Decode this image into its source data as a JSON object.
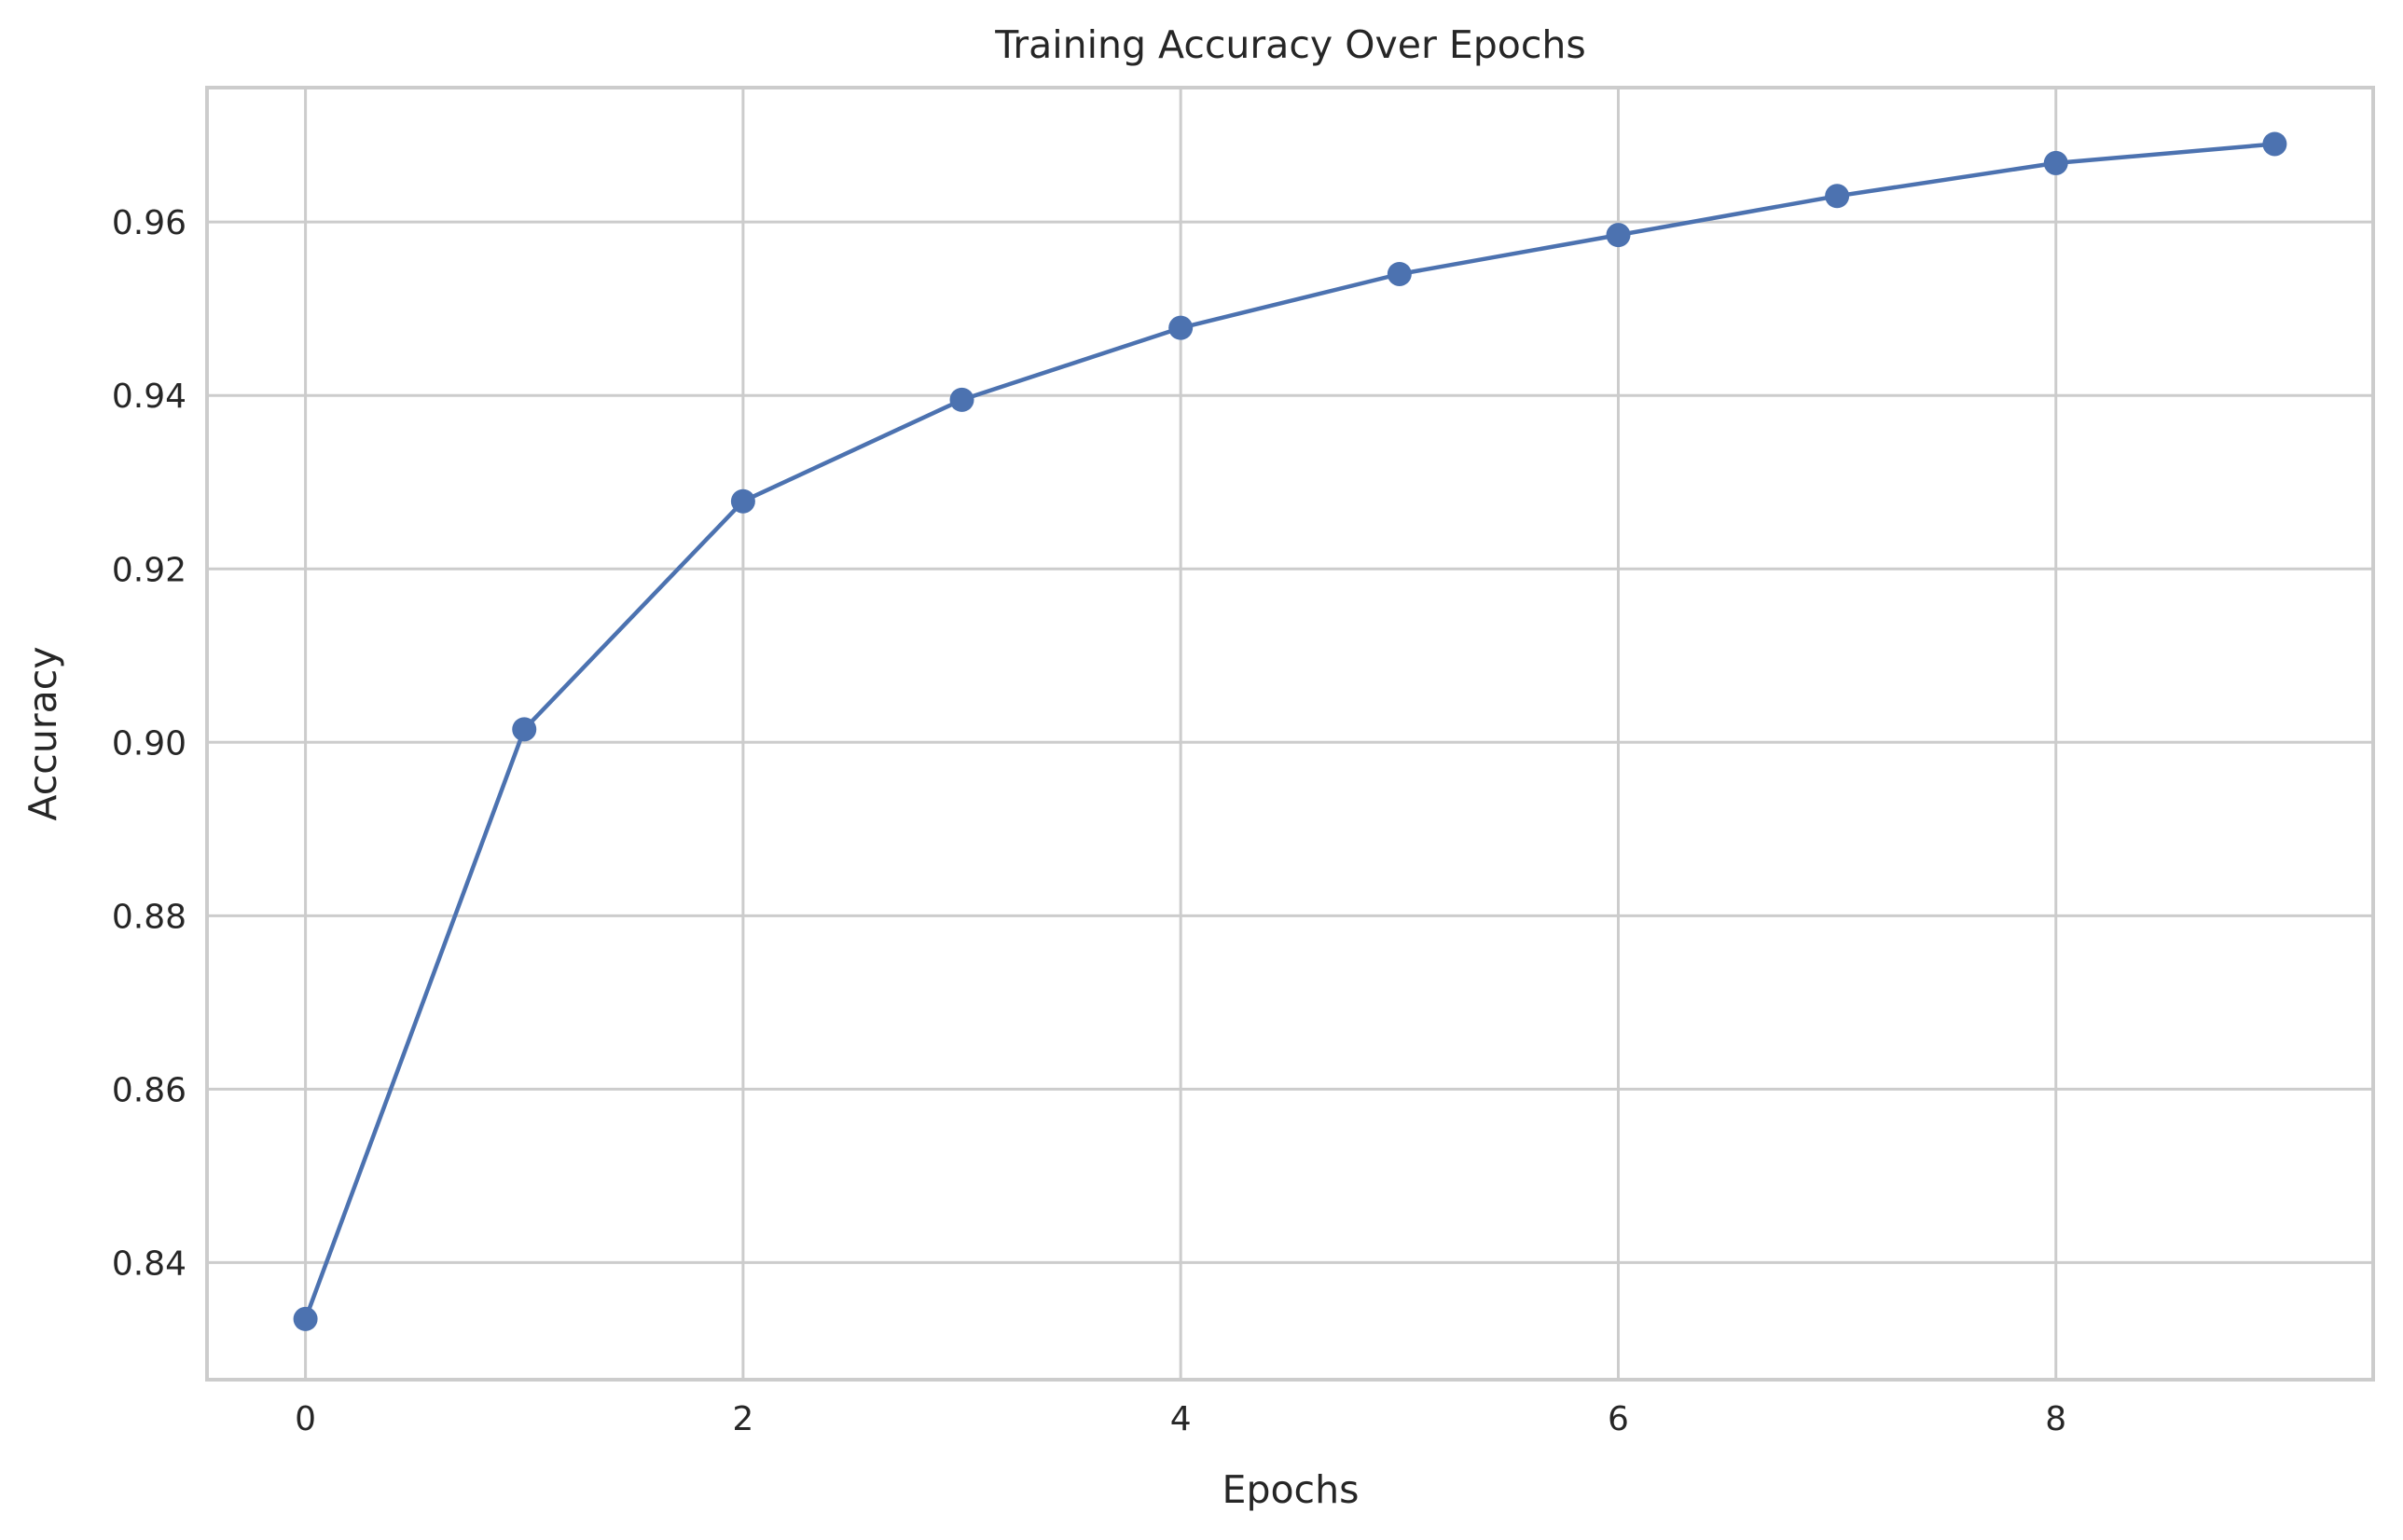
{
  "chart_data": {
    "type": "line",
    "title": "Training Accuracy Over Epochs",
    "xlabel": "Epochs",
    "ylabel": "Accuracy",
    "xlim": [
      -0.45,
      9.45
    ],
    "ylim": [
      0.8265,
      0.9755
    ],
    "x_ticks": [
      0,
      2,
      4,
      6,
      8
    ],
    "y_ticks": [
      0.84,
      0.86,
      0.88,
      0.9,
      0.92,
      0.94,
      0.96
    ],
    "y_tick_labels": [
      "0.84",
      "0.86",
      "0.88",
      "0.90",
      "0.92",
      "0.94",
      "0.96"
    ],
    "grid": true,
    "series": [
      {
        "x": [
          0,
          1,
          2,
          3,
          4,
          5,
          6,
          7,
          8,
          9
        ],
        "values": [
          0.8335,
          0.9015,
          0.9278,
          0.9395,
          0.9478,
          0.954,
          0.9585,
          0.963,
          0.9668,
          0.969
        ],
        "color": "#4c72b0",
        "marker": "circle"
      }
    ]
  }
}
